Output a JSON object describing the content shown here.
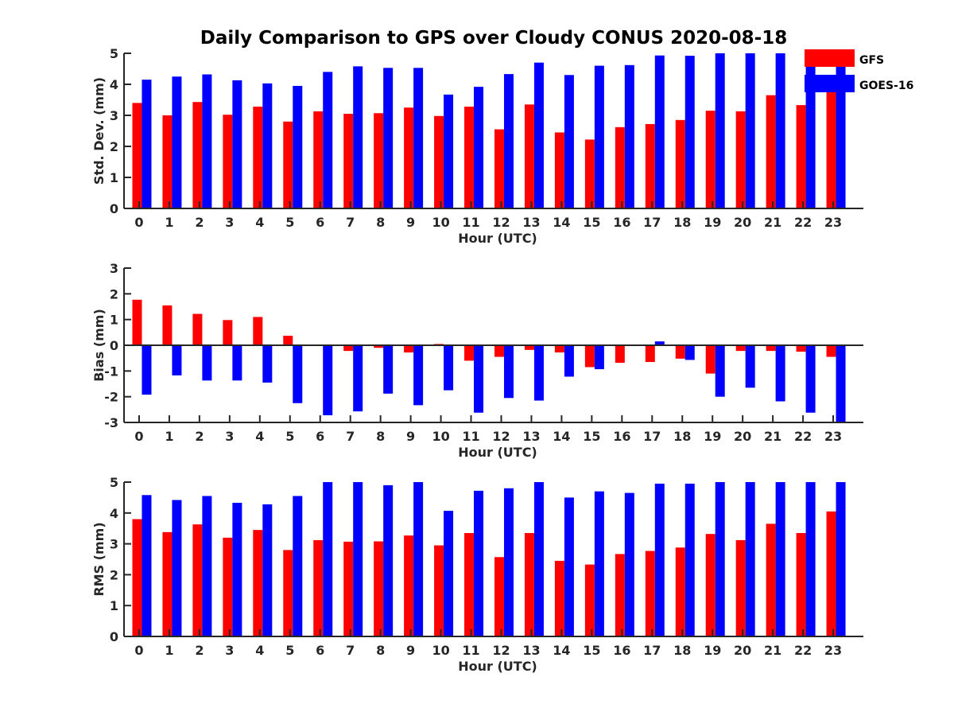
{
  "figure": {
    "title": "Daily Comparison to GPS over Cloudy CONUS 2020-08-18"
  },
  "legend": {
    "placement": "top-right",
    "entries": [
      {
        "name": "GFS",
        "color": "#ff0000"
      },
      {
        "name": "GOES-16",
        "color": "#0000ff"
      }
    ]
  },
  "chart_data": [
    {
      "type": "bar",
      "title": "Daily Comparison to GPS over Cloudy CONUS 2020-08-18",
      "xlabel": "Hour (UTC)",
      "ylabel": "Std. Dev. (mm)",
      "ylim": [
        0,
        5
      ],
      "yticks": [
        0,
        1,
        2,
        3,
        4,
        5
      ],
      "grid": false,
      "categories": [
        "0",
        "1",
        "2",
        "3",
        "4",
        "5",
        "6",
        "7",
        "8",
        "9",
        "10",
        "11",
        "12",
        "13",
        "14",
        "15",
        "16",
        "17",
        "18",
        "19",
        "20",
        "21",
        "22",
        "23"
      ],
      "series": [
        {
          "name": "GFS",
          "color": "#ff0000",
          "values": [
            3.4,
            3.0,
            3.43,
            3.02,
            3.28,
            2.8,
            3.13,
            3.05,
            3.07,
            3.25,
            2.98,
            3.28,
            2.55,
            3.35,
            2.45,
            2.22,
            2.62,
            2.72,
            2.85,
            3.15,
            3.13,
            3.65,
            3.33,
            3.75
          ]
        },
        {
          "name": "GOES-16",
          "color": "#0000ff",
          "values": [
            4.15,
            4.25,
            4.32,
            4.13,
            4.03,
            3.95,
            4.4,
            4.58,
            4.53,
            4.53,
            3.67,
            3.92,
            4.33,
            4.7,
            4.3,
            4.6,
            4.62,
            4.93,
            4.92,
            5.0,
            5.0,
            5.0,
            4.93,
            5.0
          ]
        }
      ]
    },
    {
      "type": "bar",
      "xlabel": "Hour (UTC)",
      "ylabel": "Bias (mm)",
      "ylim": [
        -3,
        3
      ],
      "yticks": [
        -3,
        -2,
        -1,
        0,
        1,
        2,
        3
      ],
      "grid": false,
      "zero_line": true,
      "categories": [
        "0",
        "1",
        "2",
        "3",
        "4",
        "5",
        "6",
        "7",
        "8",
        "9",
        "10",
        "11",
        "12",
        "13",
        "14",
        "15",
        "16",
        "17",
        "18",
        "19",
        "20",
        "21",
        "22",
        "23"
      ],
      "series": [
        {
          "name": "GFS",
          "color": "#ff0000",
          "values": [
            1.77,
            1.55,
            1.22,
            0.98,
            1.1,
            0.37,
            0.0,
            -0.22,
            -0.1,
            -0.28,
            0.05,
            -0.6,
            -0.45,
            -0.18,
            -0.28,
            -0.85,
            -0.68,
            -0.65,
            -0.52,
            -1.1,
            -0.22,
            -0.22,
            -0.25,
            -0.45
          ]
        },
        {
          "name": "GOES-16",
          "color": "#0000ff",
          "values": [
            -1.92,
            -1.17,
            -1.37,
            -1.37,
            -1.45,
            -2.25,
            -2.72,
            -2.57,
            -1.88,
            -2.33,
            -1.75,
            -2.62,
            -2.05,
            -2.15,
            -1.22,
            -0.93,
            0.0,
            0.15,
            -0.57,
            -2.0,
            -1.65,
            -2.18,
            -2.62,
            -3.0
          ]
        }
      ]
    },
    {
      "type": "bar",
      "xlabel": "Hour (UTC)",
      "ylabel": "RMS (mm)",
      "ylim": [
        0,
        5
      ],
      "yticks": [
        0,
        1,
        2,
        3,
        4,
        5
      ],
      "grid": false,
      "categories": [
        "0",
        "1",
        "2",
        "3",
        "4",
        "5",
        "6",
        "7",
        "8",
        "9",
        "10",
        "11",
        "12",
        "13",
        "14",
        "15",
        "16",
        "17",
        "18",
        "19",
        "20",
        "21",
        "22",
        "23"
      ],
      "series": [
        {
          "name": "GFS",
          "color": "#ff0000",
          "values": [
            3.8,
            3.38,
            3.63,
            3.2,
            3.45,
            2.8,
            3.12,
            3.07,
            3.08,
            3.27,
            2.95,
            3.35,
            2.57,
            3.35,
            2.45,
            2.33,
            2.67,
            2.77,
            2.88,
            3.32,
            3.12,
            3.65,
            3.35,
            4.05
          ]
        },
        {
          "name": "GOES-16",
          "color": "#0000ff",
          "values": [
            4.58,
            4.42,
            4.55,
            4.33,
            4.28,
            4.55,
            5.0,
            5.0,
            4.9,
            5.0,
            4.07,
            4.72,
            4.8,
            5.0,
            4.5,
            4.7,
            4.65,
            4.95,
            4.95,
            5.0,
            5.0,
            5.0,
            5.0,
            5.0
          ]
        }
      ]
    }
  ]
}
